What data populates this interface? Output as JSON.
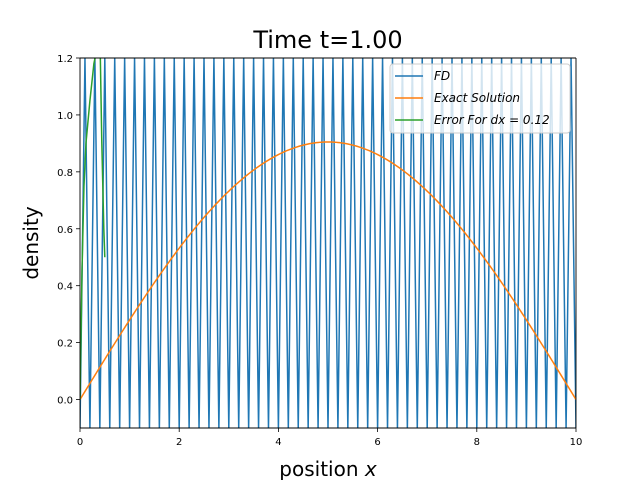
{
  "chart_data": {
    "type": "line",
    "title": "Time t=1.00",
    "xlabel": "position",
    "xlabel_var": "x",
    "ylabel": "density",
    "xlim": [
      0,
      10
    ],
    "ylim": [
      -0.1,
      1.2
    ],
    "xticks": [
      0,
      2,
      4,
      6,
      8,
      10
    ],
    "yticks": [
      0.0,
      0.2,
      0.4,
      0.6,
      0.8,
      1.0,
      1.2
    ],
    "xtick_labels": [
      "0",
      "2",
      "4",
      "6",
      "8",
      "10"
    ],
    "ytick_labels": [
      "0.0",
      "0.2",
      "0.4",
      "0.6",
      "0.8",
      "1.0",
      "1.2"
    ],
    "grid": false,
    "legend_position": "top-right",
    "series": [
      {
        "name": "FD",
        "legend_label": "FD",
        "color": "#1f77b4",
        "kind": "oscillation",
        "period": 0.2,
        "x_start": 0,
        "x_end": 10,
        "low": -0.1,
        "high": 1.2
      },
      {
        "name": "Exact Solution",
        "legend_label": "Exact Solution",
        "color": "#ff7f0e",
        "kind": "function",
        "formula": "peak * sin(pi * x / 10)",
        "peak": 0.905
      },
      {
        "name": "Error For dx = 0.12",
        "legend_label": "Error For dx = 0.12",
        "color": "#2ca02c",
        "kind": "polyline",
        "x": [
          0,
          0.04,
          0.08,
          0.12,
          0.2,
          0.28,
          0.36,
          0.4,
          0.44,
          0.48,
          0.5,
          9.98,
          10
        ],
        "y": [
          0.0,
          0.45,
          0.75,
          0.9,
          1.05,
          1.18,
          1.25,
          1.3,
          0.9,
          0.6,
          0.5,
          1.3,
          1.3
        ]
      }
    ]
  },
  "legend": {
    "items": [
      {
        "label": "FD",
        "color": "#1f77b4"
      },
      {
        "label": "Exact Solution",
        "color": "#ff7f0e"
      },
      {
        "label": "Error For dx = 0.12",
        "color": "#2ca02c"
      }
    ]
  }
}
